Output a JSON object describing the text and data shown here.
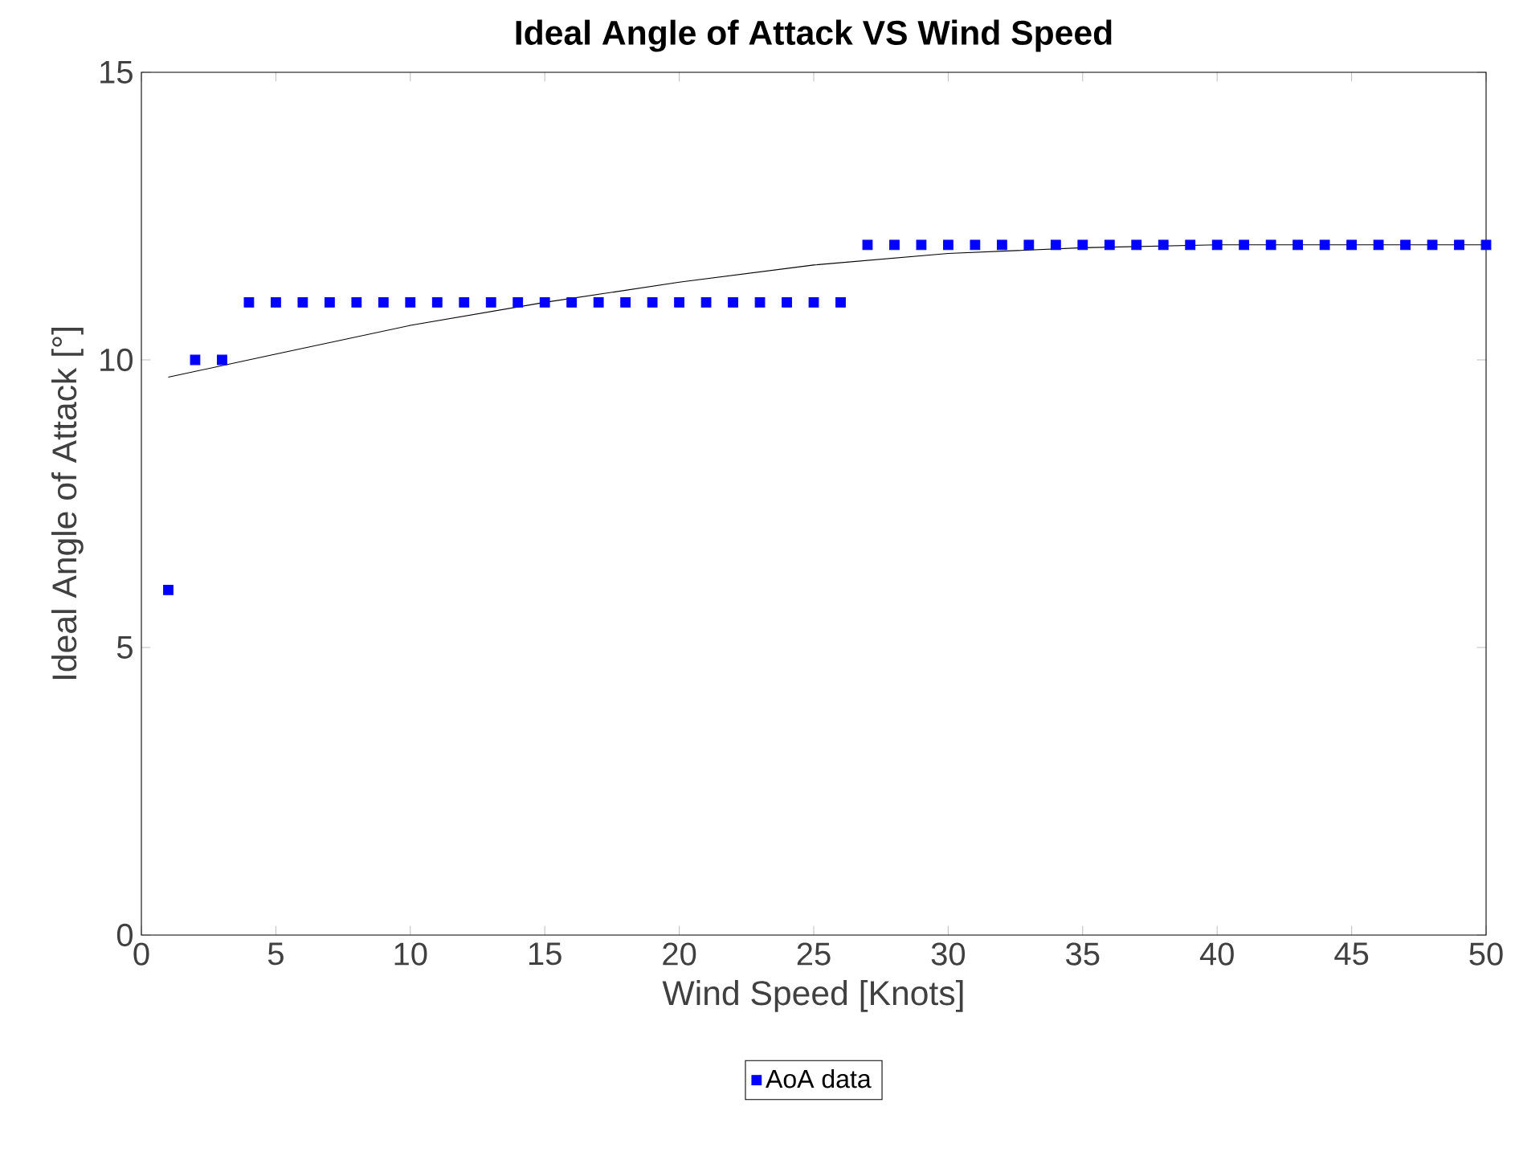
{
  "chart_data": {
    "type": "scatter",
    "title": "Ideal Angle of Attack VS Wind Speed",
    "xlabel": "Wind Speed [Knots]",
    "ylabel": "Ideal Angle of Attack [°]",
    "xlim": [
      0,
      50
    ],
    "ylim": [
      0,
      15
    ],
    "xticks": [
      0,
      5,
      10,
      15,
      20,
      25,
      30,
      35,
      40,
      45,
      50
    ],
    "yticks": [
      0,
      5,
      10,
      15
    ],
    "grid": false,
    "legend": "bottom",
    "marker": "square",
    "series": [
      {
        "name": "AoA data",
        "color": "#0000ff",
        "x": [
          1,
          2,
          3,
          4,
          5,
          6,
          7,
          8,
          9,
          10,
          11,
          12,
          13,
          14,
          15,
          16,
          17,
          18,
          19,
          20,
          21,
          22,
          23,
          24,
          25,
          26,
          27,
          28,
          29,
          30,
          31,
          32,
          33,
          34,
          35,
          36,
          37,
          38,
          39,
          40,
          41,
          42,
          43,
          44,
          45,
          46,
          47,
          48,
          49,
          50
        ],
        "values": [
          6,
          10,
          10,
          11,
          11,
          11,
          11,
          11,
          11,
          11,
          11,
          11,
          11,
          11,
          11,
          11,
          11,
          11,
          11,
          11,
          11,
          11,
          11,
          11,
          11,
          11,
          12,
          12,
          12,
          12,
          12,
          12,
          12,
          12,
          12,
          12,
          12,
          12,
          12,
          12,
          12,
          12,
          12,
          12,
          12,
          12,
          12,
          12,
          12,
          12
        ]
      },
      {
        "color": "#000000",
        "type": "line",
        "marker": "none",
        "x": [
          1,
          5,
          10,
          15,
          20,
          25,
          30,
          35,
          40,
          45,
          50
        ],
        "values": [
          9.7,
          10.1,
          10.6,
          11.0,
          11.35,
          11.65,
          11.85,
          11.95,
          12.0,
          12.0,
          12.0
        ]
      }
    ]
  }
}
